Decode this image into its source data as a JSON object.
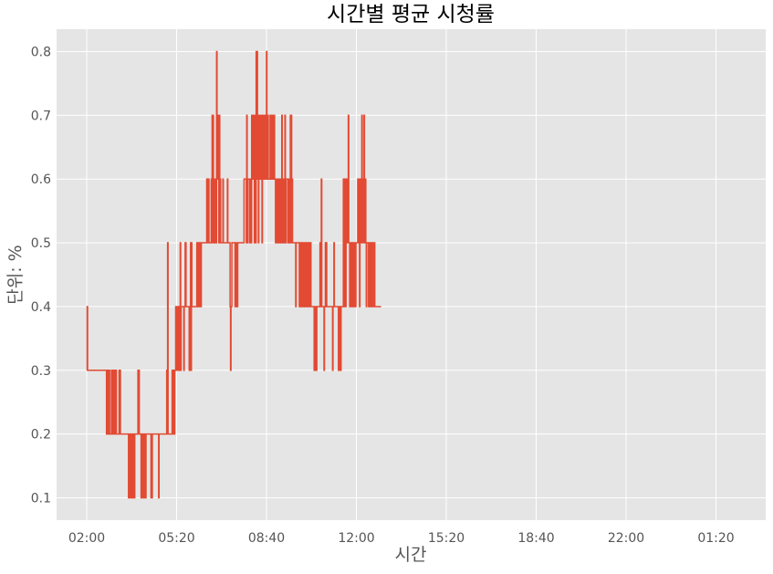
{
  "chart_data": {
    "type": "line",
    "title": "시간별 평균 시청률",
    "xlabel": "시간",
    "ylabel": "단위: %",
    "x_tick_labels": [
      "02:00",
      "05:20",
      "08:40",
      "12:00",
      "15:20",
      "18:40",
      "22:00",
      "01:20"
    ],
    "y_ticks": [
      0.1,
      0.2,
      0.3,
      0.4,
      0.5,
      0.6,
      0.7,
      0.8
    ],
    "ylim": [
      0.065,
      0.835
    ],
    "grid": true,
    "legend": "none",
    "background": "#E5E5E5",
    "series_color": "#E24A33",
    "x_start": "02:00",
    "x_interval_minutes": 10,
    "series": [
      {
        "values": [
          0.3,
          0.4,
          0.3,
          0.3,
          0.3,
          0.3,
          0.3,
          0.3,
          0.3,
          0.3,
          0.3,
          0.3,
          0.3,
          0.3,
          0.3,
          0.3,
          0.3,
          0.3,
          0.3,
          0.3,
          0.3,
          0.3,
          0.3,
          0.3,
          0.3,
          0.3,
          0.3,
          0.3,
          0.3,
          0.3,
          0.3,
          0.3,
          0.3,
          0.3,
          0.3,
          0.3,
          0.3,
          0.3,
          0.3,
          0.3,
          0.3,
          0.3,
          0.3,
          0.3,
          0.2,
          0.3,
          0.2,
          0.3,
          0.2,
          0.2,
          0.3,
          0.2,
          0.2,
          0.2,
          0.2,
          0.3,
          0.2,
          0.2,
          0.3,
          0.2,
          0.3,
          0.2,
          0.3,
          0.2,
          0.2,
          0.3,
          0.2,
          0.2,
          0.2,
          0.2,
          0.2,
          0.2,
          0.3,
          0.2,
          0.3,
          0.2,
          0.2,
          0.2,
          0.2,
          0.2,
          0.2,
          0.2,
          0.2,
          0.2,
          0.2,
          0.2,
          0.2,
          0.2,
          0.2,
          0.2,
          0.2,
          0.2,
          0.2,
          0.1,
          0.2,
          0.1,
          0.2,
          0.1,
          0.2,
          0.1,
          0.2,
          0.1,
          0.2,
          0.1,
          0.1,
          0.2,
          0.1,
          0.2,
          0.2,
          0.2,
          0.2,
          0.2,
          0.2,
          0.2,
          0.3,
          0.2,
          0.3,
          0.2,
          0.2,
          0.2,
          0.2,
          0.1,
          0.2,
          0.2,
          0.2,
          0.1,
          0.2,
          0.2,
          0.1,
          0.2,
          0.2,
          0.1,
          0.2,
          0.2,
          0.2,
          0.2,
          0.2,
          0.2,
          0.2,
          0.2,
          0.2,
          0.2,
          0.2,
          0.1,
          0.1,
          0.1,
          0.2,
          0.2,
          0.2,
          0.2,
          0.2,
          0.2,
          0.2,
          0.2,
          0.2,
          0.2,
          0.2,
          0.2,
          0.2,
          0.2,
          0.1,
          0.2,
          0.2,
          0.2,
          0.2,
          0.2,
          0.2,
          0.2,
          0.2,
          0.2,
          0.2,
          0.2,
          0.2,
          0.2,
          0.2,
          0.2,
          0.2,
          0.2,
          0.3,
          0.2,
          0.5,
          0.2,
          0.2,
          0.2,
          0.2,
          0.2,
          0.2,
          0.2,
          0.2,
          0.2,
          0.3,
          0.2,
          0.3,
          0.2,
          0.3,
          0.2,
          0.3,
          0.3,
          0.4,
          0.3,
          0.3,
          0.4,
          0.3,
          0.4,
          0.4,
          0.4,
          0.3,
          0.3,
          0.5,
          0.3,
          0.4,
          0.4,
          0.4,
          0.4,
          0.4,
          0.4,
          0.3,
          0.4,
          0.4,
          0.5,
          0.5,
          0.4,
          0.4,
          0.4,
          0.4,
          0.4,
          0.4,
          0.4,
          0.3,
          0.4,
          0.3,
          0.5,
          0.3,
          0.5,
          0.4,
          0.4,
          0.4,
          0.4,
          0.4,
          0.4,
          0.4,
          0.4,
          0.4,
          0.4,
          0.4,
          0.5,
          0.4,
          0.5,
          0.5,
          0.4,
          0.4,
          0.5,
          0.4,
          0.5,
          0.4,
          0.5,
          0.5,
          0.5,
          0.5,
          0.5,
          0.5,
          0.5,
          0.5,
          0.5,
          0.5,
          0.5,
          0.5,
          0.6,
          0.5,
          0.6,
          0.6,
          0.6,
          0.5,
          0.5,
          0.5,
          0.5,
          0.5,
          0.6,
          0.5,
          0.7,
          0.6,
          0.7,
          0.5,
          0.6,
          0.5,
          0.6,
          0.5,
          0.6,
          0.5,
          0.8,
          0.6,
          0.6,
          0.6,
          0.7,
          0.5,
          0.7,
          0.6,
          0.6,
          0.5,
          0.5,
          0.5,
          0.5,
          0.5,
          0.6,
          0.5,
          0.5,
          0.5,
          0.5,
          0.5,
          0.5,
          0.5,
          0.5,
          0.5,
          0.6,
          0.5,
          0.5,
          0.5,
          0.5,
          0.5,
          0.4,
          0.3,
          0.4,
          0.4,
          0.5,
          0.5,
          0.5,
          0.5,
          0.5,
          0.5,
          0.5,
          0.4,
          0.4,
          0.4,
          0.5,
          0.4,
          0.4,
          0.5,
          0.5,
          0.5,
          0.5,
          0.5,
          0.5,
          0.5,
          0.5,
          0.5,
          0.5,
          0.5,
          0.5,
          0.5,
          0.5,
          0.6,
          0.6,
          0.6,
          0.6,
          0.6,
          0.5,
          0.7,
          0.6,
          0.5,
          0.6,
          0.6,
          0.6,
          0.6,
          0.5,
          0.6,
          0.6,
          0.5,
          0.7,
          0.6,
          0.7,
          0.6,
          0.7,
          0.6,
          0.5,
          0.7,
          0.6,
          0.5,
          0.8,
          0.6,
          0.8,
          0.6,
          0.7,
          0.5,
          0.7,
          0.6,
          0.6,
          0.7,
          0.6,
          0.6,
          0.7,
          0.5,
          0.7,
          0.6,
          0.6,
          0.6,
          0.7,
          0.6,
          0.7,
          0.7,
          0.6,
          0.8,
          0.7,
          0.6,
          0.7,
          0.6,
          0.6,
          0.6,
          0.6,
          0.7,
          0.6,
          0.7,
          0.6,
          0.6,
          0.6,
          0.7,
          0.6,
          0.6,
          0.7,
          0.6,
          0.6,
          0.5,
          0.6,
          0.5,
          0.6,
          0.5,
          0.5,
          0.6,
          0.5,
          0.5,
          0.5,
          0.6,
          0.5,
          0.6,
          0.5,
          0.7,
          0.6,
          0.6,
          0.5,
          0.5,
          0.6,
          0.5,
          0.7,
          0.6,
          0.5,
          0.6,
          0.6,
          0.6,
          0.6,
          0.5,
          0.6,
          0.5,
          0.6,
          0.5,
          0.7,
          0.6,
          0.7,
          0.5,
          0.6,
          0.5,
          0.5,
          0.5,
          0.5,
          0.5,
          0.5,
          0.5,
          0.4,
          0.5,
          0.5,
          0.5,
          0.5,
          0.5,
          0.5,
          0.5,
          0.4,
          0.5,
          0.4,
          0.5,
          0.4,
          0.5,
          0.5,
          0.4,
          0.5,
          0.5,
          0.4,
          0.5,
          0.5,
          0.5,
          0.4,
          0.5,
          0.5,
          0.4,
          0.5,
          0.5,
          0.4,
          0.5,
          0.5,
          0.4,
          0.5,
          0.5,
          0.4,
          0.4,
          0.4,
          0.4,
          0.4,
          0.4,
          0.4,
          0.3,
          0.4,
          0.3,
          0.4,
          0.4,
          0.3,
          0.4,
          0.4,
          0.4,
          0.4,
          0.4,
          0.4,
          0.4,
          0.5,
          0.4,
          0.5,
          0.6,
          0.4,
          0.4,
          0.4,
          0.4,
          0.4,
          0.3,
          0.4,
          0.4,
          0.5,
          0.4,
          0.5,
          0.4,
          0.4,
          0.4,
          0.4,
          0.4,
          0.4,
          0.4,
          0.4,
          0.4,
          0.4,
          0.4,
          0.4,
          0.4,
          0.3,
          0.4,
          0.4,
          0.5,
          0.4,
          0.4,
          0.4,
          0.4,
          0.4,
          0.4,
          0.4,
          0.4,
          0.4,
          0.3,
          0.4,
          0.3,
          0.3,
          0.4,
          0.3,
          0.4,
          0.4,
          0.4,
          0.4,
          0.4,
          0.6,
          0.5,
          0.6,
          0.4,
          0.6,
          0.4,
          0.5,
          0.6,
          0.5,
          0.5,
          0.5,
          0.7,
          0.5,
          0.5,
          0.4,
          0.5,
          0.4,
          0.5,
          0.4,
          0.5,
          0.4,
          0.5,
          0.4,
          0.5,
          0.4,
          0.4,
          0.5,
          0.4,
          0.5,
          0.5,
          0.5,
          0.5,
          0.6,
          0.5,
          0.5,
          0.6,
          0.4,
          0.6,
          0.5,
          0.6,
          0.5,
          0.7,
          0.6,
          0.5,
          0.6,
          0.5,
          0.7,
          0.6,
          0.5,
          0.6,
          0.5,
          0.4,
          0.5,
          0.5,
          0.5,
          0.5,
          0.4,
          0.5,
          0.5,
          0.5,
          0.4,
          0.5,
          0.4,
          0.5,
          0.5,
          0.4,
          0.5,
          0.5,
          0.4,
          0.5,
          0.4,
          0.4,
          0.4,
          0.4,
          0.4,
          0.4,
          0.4,
          0.4,
          0.4,
          0.4,
          0.4,
          0.4,
          0.4,
          0.4,
          0.4
        ]
      }
    ]
  }
}
